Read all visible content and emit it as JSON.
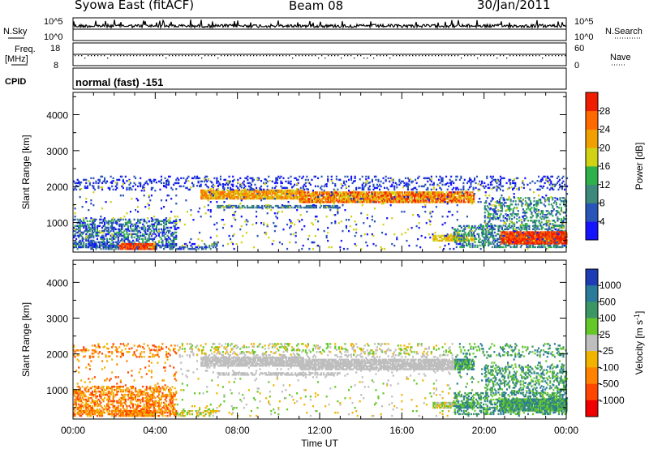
{
  "header": {
    "title": "Syowa East (fitACF)",
    "beam": "Beam 08",
    "date": "30/Jan/2011"
  },
  "top_panels": {
    "nsky_label": "N.Sky",
    "nsky_ticks": [
      "10^5",
      "10^0"
    ],
    "nsearch_label": "N.Search",
    "nsearch_ticks": [
      "10^5",
      "10^0"
    ],
    "freq_label_1": "Freq.",
    "freq_label_2": "[MHz]",
    "freq_ticks": [
      "18",
      "8"
    ],
    "nave_label": "Nave",
    "nave_ticks": [
      "60",
      "0"
    ],
    "cpid_label": "CPID",
    "cpid_value": "normal (fast) -151"
  },
  "chart_data": [
    {
      "type": "heatmap",
      "name": "power-panel",
      "ylabel": "Slant Range [km]",
      "xlabel": "Time UT",
      "y_ticks": [
        "1000",
        "2000",
        "3000",
        "4000"
      ],
      "y_tick_values": [
        1000,
        2000,
        3000,
        4000
      ],
      "ylim": [
        180,
        4620
      ],
      "x_ticks": [
        "00:00",
        "04:00",
        "08:00",
        "12:00",
        "16:00",
        "20:00",
        "00:00"
      ],
      "x_tick_hours": [
        0,
        4,
        8,
        12,
        16,
        20,
        24
      ],
      "xlim": [
        0,
        24
      ],
      "colorbar": {
        "label": "Power [dB]",
        "tick_labels": [
          "4",
          "8",
          "12",
          "16",
          "20",
          "24",
          "28"
        ],
        "colors": [
          "#1414ff",
          "#2a55b8",
          "#3d8a7d",
          "#2eb04a",
          "#d2d214",
          "#f0a000",
          "#ff6a00",
          "#f01e00"
        ]
      }
    },
    {
      "type": "heatmap",
      "name": "velocity-panel",
      "ylabel": "Slant Range [km]",
      "xlabel": "Time UT",
      "y_ticks": [
        "1000",
        "2000",
        "3000",
        "4000"
      ],
      "y_tick_values": [
        1000,
        2000,
        3000,
        4000
      ],
      "ylim": [
        180,
        4620
      ],
      "x_ticks": [
        "00:00",
        "04:00",
        "08:00",
        "12:00",
        "16:00",
        "20:00",
        "00:00"
      ],
      "x_tick_hours": [
        0,
        4,
        8,
        12,
        16,
        20,
        24
      ],
      "xlim": [
        0,
        24
      ],
      "colorbar": {
        "label": "Velocity [m s",
        "label_sup": "-1",
        "label_end": "]",
        "tick_labels": [
          "1000",
          "500",
          "100",
          "25",
          "-25",
          "-100",
          "-500",
          "-1000"
        ],
        "colors": [
          "#1e3cb4",
          "#2a7a9a",
          "#3c9664",
          "#64c828",
          "#bebebe",
          "#f0b400",
          "#ff8200",
          "#ff4600",
          "#f00000"
        ]
      }
    }
  ]
}
